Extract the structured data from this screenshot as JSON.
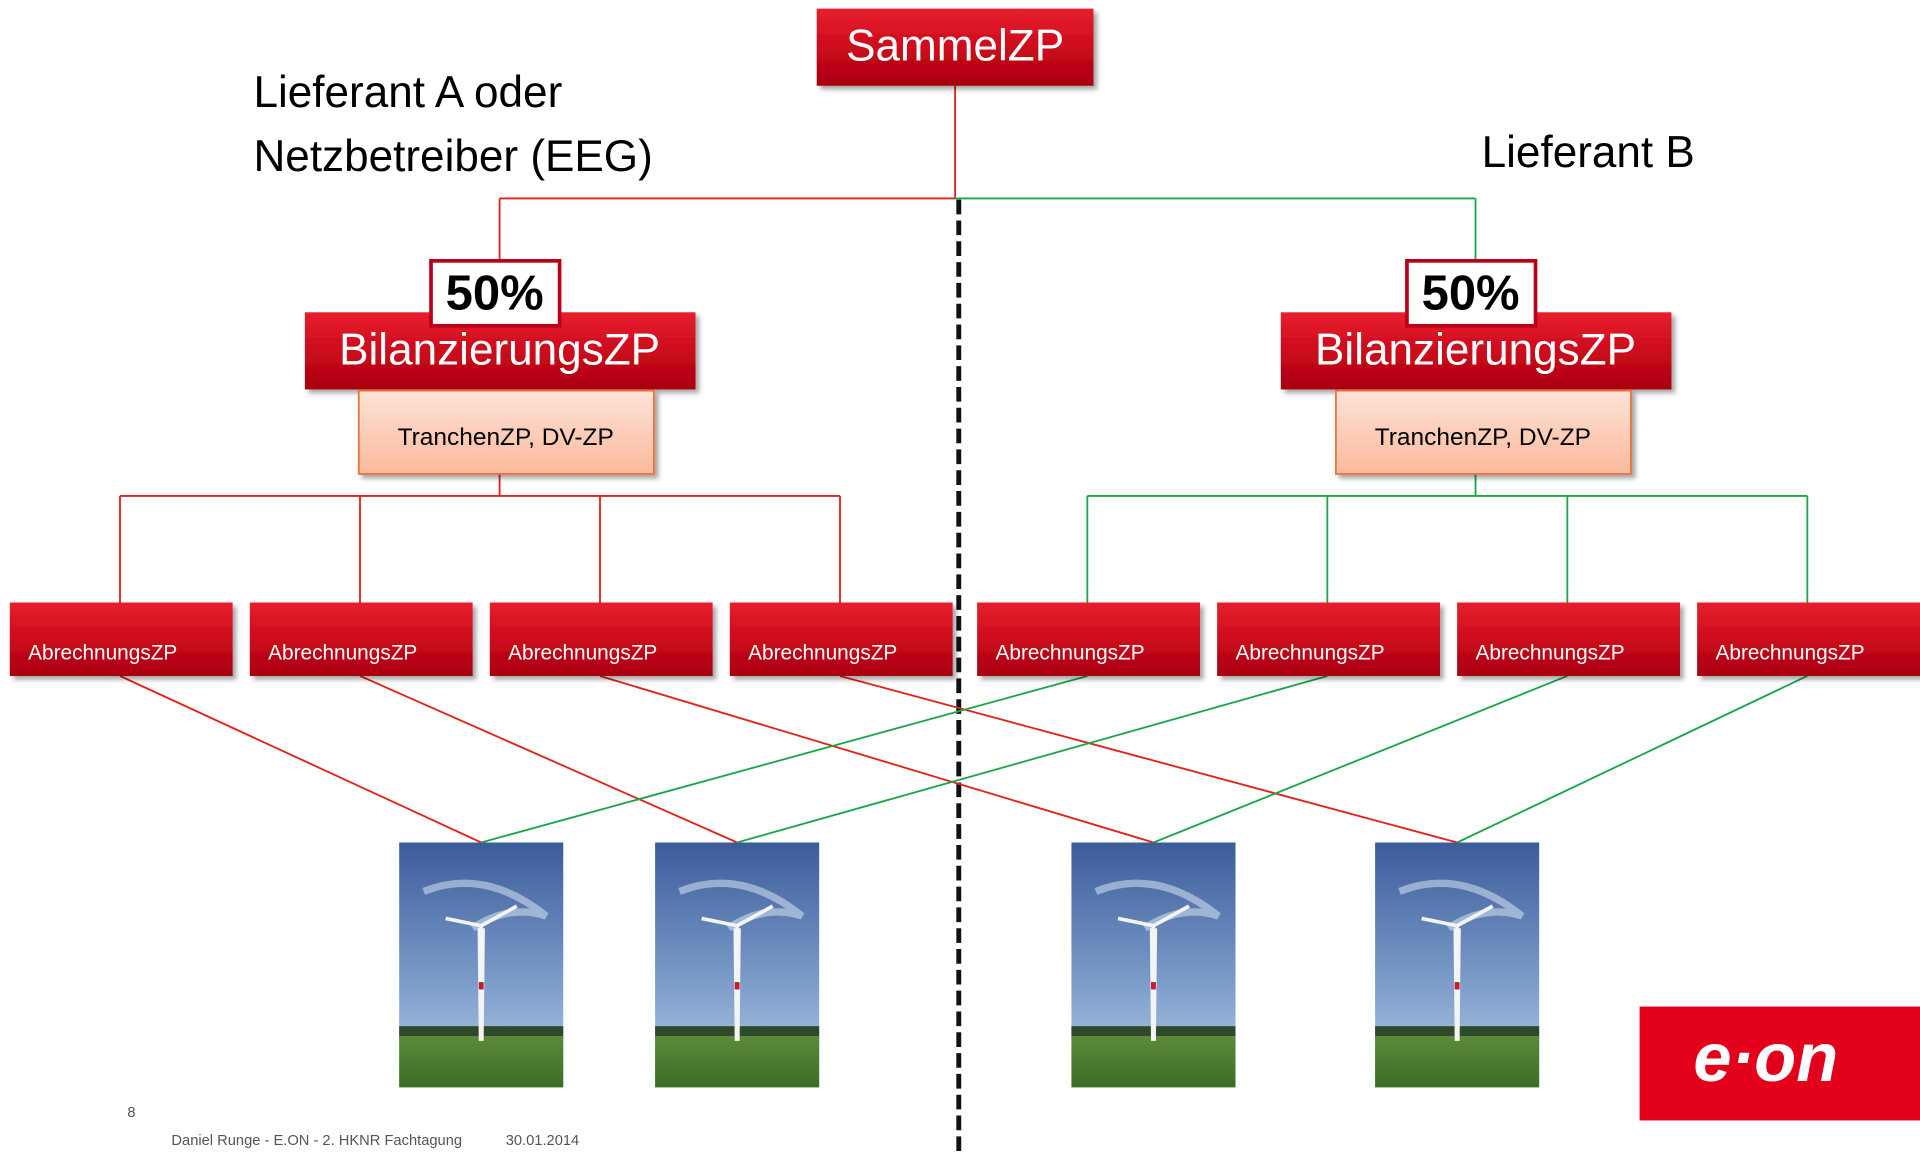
{
  "root": {
    "label": "SammelZP"
  },
  "groups": [
    {
      "supplier": [
        "Lieferant A oder",
        "Netzbetreiber (EEG)"
      ],
      "share": "50%",
      "balance": "BilanzierungsZP",
      "tranche": "TranchenZP, DV-ZP",
      "billing": [
        "AbrechnungsZP",
        "AbrechnungsZP",
        "AbrechnungsZP",
        "AbrechnungsZP"
      ],
      "color": "#e2231a"
    },
    {
      "supplier": [
        "Lieferant B"
      ],
      "share": "50%",
      "balance": "BilanzierungsZP",
      "tranche": "TranchenZP, DV-ZP",
      "billing": [
        "AbrechnungsZP",
        "AbrechnungsZP",
        "AbrechnungsZP",
        "AbrechnungsZP"
      ],
      "color": "#1aa64a"
    }
  ],
  "footer": {
    "page": "8",
    "text": "Daniel Runge - E.ON - 2. HKNR Fachtagung",
    "date": "30.01.2014"
  },
  "logo": "e·on"
}
